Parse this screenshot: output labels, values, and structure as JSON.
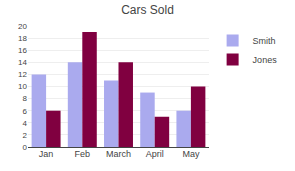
{
  "chart_data": {
    "type": "bar",
    "title": "Cars Sold",
    "categories": [
      "Jan",
      "Feb",
      "March",
      "April",
      "May"
    ],
    "series": [
      {
        "name": "Smith",
        "color": "#aaaaee",
        "values": [
          12,
          14,
          11,
          9,
          6
        ]
      },
      {
        "name": "Jones",
        "color": "#800040",
        "values": [
          6,
          19,
          14,
          5,
          10
        ]
      }
    ],
    "ylim": [
      0,
      20
    ],
    "yticks": [
      0,
      2,
      4,
      6,
      8,
      10,
      12,
      14,
      16,
      18,
      20
    ],
    "grid": true,
    "legend": "upper right"
  }
}
